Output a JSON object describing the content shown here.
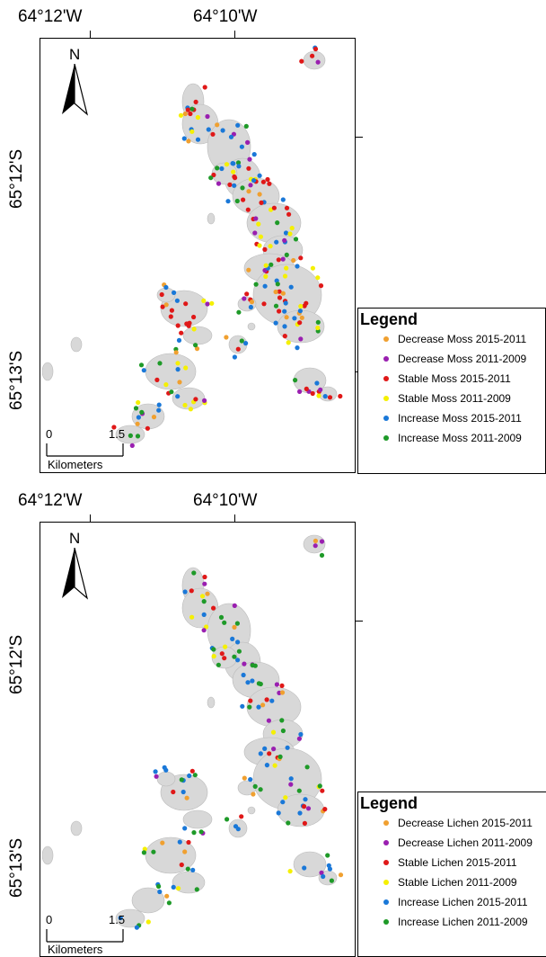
{
  "colors": {
    "decrease_2015": "#f0a030",
    "decrease_2009": "#9a1fb0",
    "stable_2015": "#e01818",
    "stable_2009": "#f5f000",
    "increase_2015": "#1a78d8",
    "increase_2009": "#1e9a28",
    "island": "#d8d8d8"
  },
  "maps": [
    {
      "lon_labels": [
        "64°12'W",
        "64°10'W"
      ],
      "lat_labels": [
        "65°12'S",
        "65°13'S"
      ],
      "north": "N",
      "scale": {
        "zero": "0",
        "value": "1.5",
        "unit": "Kilometers"
      },
      "legend": {
        "title": "Legend",
        "items": [
          {
            "label": "Decrease Moss 2015-2011",
            "color": "#f0a030"
          },
          {
            "label": "Decrease Moss 2011-2009",
            "color": "#9a1fb0"
          },
          {
            "label": "Stable Moss 2015-2011",
            "color": "#e01818"
          },
          {
            "label": "Stable Moss 2011-2009",
            "color": "#f5f000"
          },
          {
            "label": "Increase Moss 2015-2011",
            "color": "#1a78d8"
          },
          {
            "label": "Increase Moss 2011-2009",
            "color": "#1e9a28"
          }
        ]
      }
    },
    {
      "lon_labels": [
        "64°12'W",
        "64°10'W"
      ],
      "lat_labels": [
        "65°12'S",
        "65°13'S"
      ],
      "north": "N",
      "scale": {
        "zero": "0",
        "value": "1.5",
        "unit": "Kilometers"
      },
      "legend": {
        "title": "Legend",
        "items": [
          {
            "label": "Decrease Lichen 2015-2011",
            "color": "#f0a030"
          },
          {
            "label": "Decrease Lichen 2011-2009",
            "color": "#9a1fb0"
          },
          {
            "label": "Stable Lichen 2015-2011",
            "color": "#e01818"
          },
          {
            "label": "Stable Lichen 2011-2009",
            "color": "#f5f000"
          },
          {
            "label": "Increase Lichen 2015-2011",
            "color": "#1a78d8"
          },
          {
            "label": "Increase Lichen 2011-2009",
            "color": "#1e9a28"
          }
        ]
      }
    }
  ]
}
